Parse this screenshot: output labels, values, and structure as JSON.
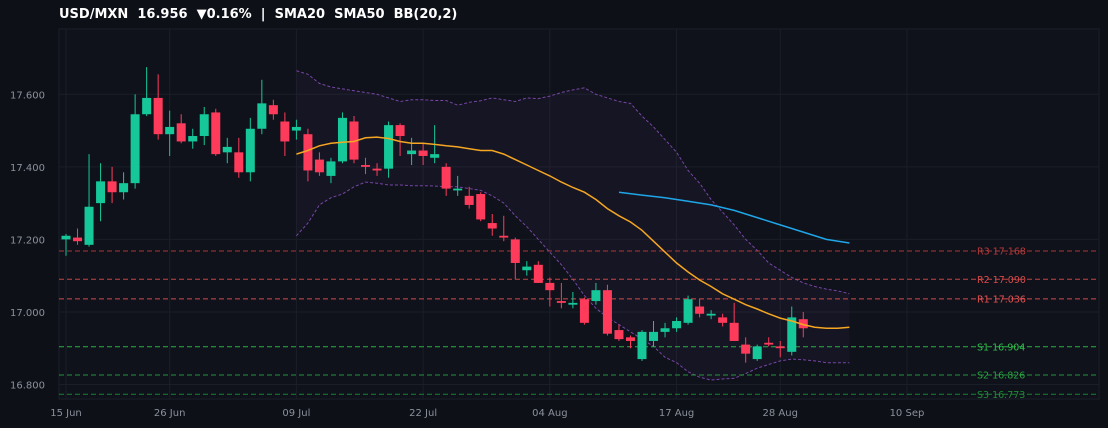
{
  "header": {
    "pair": "USD/MXN",
    "price": "16.956",
    "change": "▼0.16%",
    "separator": "|",
    "indicators": "SMA20  SMA50  BB(20,2)"
  },
  "chart_data": {
    "type": "candlestick",
    "title": "USD/MXN  16.956  ▼0.16%  |  SMA20  SMA50  BB(20,2)",
    "ylim": [
      16.76,
      17.78
    ],
    "y_ticks": [
      16.8,
      17.0,
      17.2,
      17.4,
      17.6
    ],
    "y_tick_labels": [
      "16.800",
      "17.000",
      "17.200",
      "17.400",
      "17.600"
    ],
    "x_ticks": [
      {
        "label": "15 Jun",
        "index": 0
      },
      {
        "label": "26 Jun",
        "index": 9
      },
      {
        "label": "09 Jul",
        "index": 20
      },
      {
        "label": "22 Jul",
        "index": 31
      },
      {
        "label": "04 Aug",
        "index": 42
      },
      {
        "label": "17 Aug",
        "index": 53
      },
      {
        "label": "28 Aug",
        "index": 62
      },
      {
        "label": "10 Sep",
        "index": 73
      }
    ],
    "grid": true,
    "candles": [
      [
        17.2,
        17.215,
        17.155,
        17.21
      ],
      [
        17.205,
        17.23,
        17.185,
        17.195
      ],
      [
        17.185,
        17.435,
        17.18,
        17.29
      ],
      [
        17.3,
        17.41,
        17.25,
        17.36
      ],
      [
        17.36,
        17.4,
        17.3,
        17.33
      ],
      [
        17.33,
        17.385,
        17.31,
        17.355
      ],
      [
        17.355,
        17.6,
        17.34,
        17.545
      ],
      [
        17.545,
        17.675,
        17.54,
        17.59
      ],
      [
        17.59,
        17.655,
        17.475,
        17.49
      ],
      [
        17.49,
        17.555,
        17.43,
        17.51
      ],
      [
        17.52,
        17.545,
        17.465,
        17.47
      ],
      [
        17.47,
        17.505,
        17.45,
        17.485
      ],
      [
        17.485,
        17.565,
        17.46,
        17.545
      ],
      [
        17.55,
        17.56,
        17.43,
        17.435
      ],
      [
        17.44,
        17.48,
        17.41,
        17.455
      ],
      [
        17.44,
        17.48,
        17.37,
        17.385
      ],
      [
        17.385,
        17.535,
        17.36,
        17.505
      ],
      [
        17.505,
        17.64,
        17.49,
        17.575
      ],
      [
        17.57,
        17.585,
        17.53,
        17.545
      ],
      [
        17.525,
        17.55,
        17.43,
        17.47
      ],
      [
        17.5,
        17.53,
        17.475,
        17.51
      ],
      [
        17.49,
        17.505,
        17.36,
        17.39
      ],
      [
        17.42,
        17.44,
        17.375,
        17.385
      ],
      [
        17.375,
        17.425,
        17.355,
        17.415
      ],
      [
        17.415,
        17.55,
        17.41,
        17.535
      ],
      [
        17.525,
        17.54,
        17.41,
        17.42
      ],
      [
        17.405,
        17.425,
        17.38,
        17.4
      ],
      [
        17.395,
        17.41,
        17.375,
        17.39
      ],
      [
        17.395,
        17.525,
        17.37,
        17.515
      ],
      [
        17.515,
        17.52,
        17.43,
        17.485
      ],
      [
        17.435,
        17.48,
        17.405,
        17.445
      ],
      [
        17.445,
        17.465,
        17.405,
        17.43
      ],
      [
        17.425,
        17.515,
        17.41,
        17.435
      ],
      [
        17.4,
        17.41,
        17.32,
        17.34
      ],
      [
        17.335,
        17.375,
        17.32,
        17.34
      ],
      [
        17.32,
        17.345,
        17.285,
        17.295
      ],
      [
        17.325,
        17.33,
        17.25,
        17.255
      ],
      [
        17.245,
        17.27,
        17.21,
        17.23
      ],
      [
        17.21,
        17.265,
        17.195,
        17.205
      ],
      [
        17.2,
        17.205,
        17.09,
        17.135
      ],
      [
        17.115,
        17.14,
        17.1,
        17.125
      ],
      [
        17.13,
        17.14,
        17.08,
        17.08
      ],
      [
        17.08,
        17.095,
        17.015,
        17.06
      ],
      [
        17.03,
        17.08,
        17.01,
        17.025
      ],
      [
        17.02,
        17.055,
        17.01,
        17.025
      ],
      [
        17.035,
        17.04,
        16.965,
        16.97
      ],
      [
        17.03,
        17.08,
        17.02,
        17.06
      ],
      [
        17.06,
        17.075,
        16.935,
        16.94
      ],
      [
        16.95,
        16.965,
        16.92,
        16.925
      ],
      [
        16.93,
        16.935,
        16.9,
        16.92
      ],
      [
        16.87,
        16.95,
        16.865,
        16.945
      ],
      [
        16.92,
        16.975,
        16.905,
        16.945
      ],
      [
        16.945,
        16.97,
        16.93,
        16.955
      ],
      [
        16.955,
        16.985,
        16.945,
        16.975
      ],
      [
        16.97,
        17.045,
        16.965,
        17.035
      ],
      [
        17.015,
        17.035,
        16.985,
        16.995
      ],
      [
        16.99,
        17.005,
        16.98,
        16.995
      ],
      [
        16.985,
        16.995,
        16.96,
        16.97
      ],
      [
        16.97,
        17.025,
        16.92,
        16.92
      ],
      [
        16.91,
        16.93,
        16.86,
        16.885
      ],
      [
        16.87,
        16.91,
        16.865,
        16.905
      ],
      [
        16.915,
        16.93,
        16.905,
        16.91
      ],
      [
        16.905,
        16.92,
        16.875,
        16.9
      ],
      [
        16.89,
        17.015,
        16.88,
        16.985
      ],
      [
        16.98,
        17.0,
        16.93,
        16.955
      ]
    ],
    "series": [
      {
        "color": "#f5a623",
        "points": [
          [
            20,
            17.435
          ],
          [
            21,
            17.445
          ],
          [
            22,
            17.458
          ],
          [
            23,
            17.465
          ],
          [
            24,
            17.468
          ],
          [
            25,
            17.47
          ],
          [
            26,
            17.48
          ],
          [
            27,
            17.482
          ],
          [
            28,
            17.478
          ],
          [
            29,
            17.47
          ],
          [
            30,
            17.465
          ],
          [
            31,
            17.465
          ],
          [
            32,
            17.462
          ],
          [
            33,
            17.458
          ],
          [
            34,
            17.455
          ],
          [
            35,
            17.45
          ],
          [
            36,
            17.445
          ],
          [
            37,
            17.445
          ],
          [
            38,
            17.435
          ],
          [
            39,
            17.42
          ],
          [
            40,
            17.405
          ],
          [
            41,
            17.39
          ],
          [
            42,
            17.375
          ],
          [
            43,
            17.358
          ],
          [
            44,
            17.343
          ],
          [
            45,
            17.33
          ],
          [
            46,
            17.31
          ],
          [
            47,
            17.285
          ],
          [
            48,
            17.265
          ],
          [
            49,
            17.248
          ],
          [
            50,
            17.225
          ],
          [
            51,
            17.195
          ],
          [
            52,
            17.165
          ],
          [
            53,
            17.135
          ],
          [
            54,
            17.11
          ],
          [
            55,
            17.088
          ],
          [
            56,
            17.07
          ],
          [
            57,
            17.05
          ],
          [
            58,
            17.035
          ],
          [
            59,
            17.02
          ],
          [
            60,
            17.008
          ],
          [
            61,
            16.995
          ],
          [
            62,
            16.983
          ],
          [
            63,
            16.975
          ],
          [
            64,
            16.965
          ],
          [
            65,
            16.958
          ],
          [
            66,
            16.955
          ],
          [
            67,
            16.955
          ],
          [
            68,
            16.958
          ]
        ]
      },
      {
        "color": "#1fa6e8",
        "points": [
          [
            48,
            17.33
          ],
          [
            50,
            17.322
          ],
          [
            52,
            17.315
          ],
          [
            54,
            17.305
          ],
          [
            56,
            17.295
          ],
          [
            58,
            17.28
          ],
          [
            60,
            17.26
          ],
          [
            62,
            17.24
          ],
          [
            64,
            17.22
          ],
          [
            66,
            17.2
          ],
          [
            68,
            17.19
          ]
        ]
      }
    ],
    "bollinger": {
      "upper": [
        [
          20,
          17.665
        ],
        [
          21,
          17.655
        ],
        [
          22,
          17.63
        ],
        [
          23,
          17.62
        ],
        [
          24,
          17.615
        ],
        [
          25,
          17.61
        ],
        [
          26,
          17.605
        ],
        [
          27,
          17.6
        ],
        [
          28,
          17.59
        ],
        [
          29,
          17.58
        ],
        [
          30,
          17.585
        ],
        [
          31,
          17.585
        ],
        [
          32,
          17.583
        ],
        [
          33,
          17.583
        ],
        [
          34,
          17.57
        ],
        [
          35,
          17.578
        ],
        [
          36,
          17.582
        ],
        [
          37,
          17.59
        ],
        [
          38,
          17.585
        ],
        [
          39,
          17.58
        ],
        [
          40,
          17.59
        ],
        [
          41,
          17.588
        ],
        [
          42,
          17.595
        ],
        [
          43,
          17.605
        ],
        [
          44,
          17.612
        ],
        [
          45,
          17.618
        ],
        [
          46,
          17.6
        ],
        [
          47,
          17.59
        ],
        [
          48,
          17.58
        ],
        [
          49,
          17.575
        ],
        [
          50,
          17.54
        ],
        [
          51,
          17.51
        ],
        [
          52,
          17.475
        ],
        [
          53,
          17.44
        ],
        [
          54,
          17.39
        ],
        [
          55,
          17.355
        ],
        [
          56,
          17.31
        ],
        [
          57,
          17.275
        ],
        [
          58,
          17.24
        ],
        [
          59,
          17.2
        ],
        [
          60,
          17.17
        ],
        [
          61,
          17.135
        ],
        [
          62,
          17.115
        ],
        [
          63,
          17.095
        ],
        [
          64,
          17.08
        ],
        [
          65,
          17.07
        ],
        [
          66,
          17.063
        ],
        [
          67,
          17.058
        ],
        [
          68,
          17.05
        ]
      ],
      "lower": [
        [
          20,
          17.21
        ],
        [
          21,
          17.245
        ],
        [
          22,
          17.295
        ],
        [
          23,
          17.315
        ],
        [
          24,
          17.325
        ],
        [
          25,
          17.345
        ],
        [
          26,
          17.358
        ],
        [
          27,
          17.355
        ],
        [
          28,
          17.35
        ],
        [
          29,
          17.35
        ],
        [
          30,
          17.348
        ],
        [
          31,
          17.348
        ],
        [
          32,
          17.347
        ],
        [
          33,
          17.345
        ],
        [
          34,
          17.345
        ],
        [
          35,
          17.34
        ],
        [
          36,
          17.335
        ],
        [
          37,
          17.32
        ],
        [
          38,
          17.3
        ],
        [
          39,
          17.265
        ],
        [
          40,
          17.235
        ],
        [
          41,
          17.2
        ],
        [
          42,
          17.165
        ],
        [
          43,
          17.13
        ],
        [
          44,
          17.09
        ],
        [
          45,
          17.045
        ],
        [
          46,
          17.01
        ],
        [
          47,
          16.985
        ],
        [
          48,
          16.965
        ],
        [
          49,
          16.945
        ],
        [
          50,
          16.925
        ],
        [
          51,
          16.905
        ],
        [
          52,
          16.875
        ],
        [
          53,
          16.86
        ],
        [
          54,
          16.835
        ],
        [
          55,
          16.82
        ],
        [
          56,
          16.812
        ],
        [
          57,
          16.815
        ],
        [
          58,
          16.817
        ],
        [
          59,
          16.83
        ],
        [
          60,
          16.845
        ],
        [
          61,
          16.855
        ],
        [
          62,
          16.865
        ],
        [
          63,
          16.87
        ],
        [
          64,
          16.868
        ],
        [
          65,
          16.865
        ],
        [
          66,
          16.86
        ],
        [
          67,
          16.86
        ],
        [
          68,
          16.86
        ]
      ]
    },
    "levels": [
      {
        "name": "R3",
        "value": 17.168,
        "label": "R3 17.168",
        "color": "#b83a3a"
      },
      {
        "name": "R2",
        "value": 17.09,
        "label": "R2 17.090",
        "color": "#d84a4a"
      },
      {
        "name": "R1",
        "value": 17.036,
        "label": "R1 17.036",
        "color": "#e85050"
      },
      {
        "name": "S1",
        "value": 16.904,
        "label": "S1 16.904",
        "color": "#2fbf4a"
      },
      {
        "name": "S2",
        "value": 16.826,
        "label": "S2 16.826",
        "color": "#27a240"
      },
      {
        "name": "S3",
        "value": 16.773,
        "label": "S3 16.773",
        "color": "#1f8a36"
      }
    ],
    "colors": {
      "up": "#16c79a",
      "down": "#ff3b5c",
      "band": "#8a4fbf"
    }
  }
}
